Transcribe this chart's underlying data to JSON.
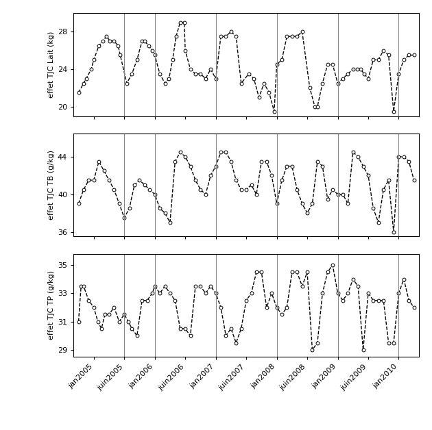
{
  "x_tick_labels": [
    "jan2005",
    "juin2005",
    "jan2006",
    "juin2006",
    "jan2007",
    "juin2007",
    "jan2008",
    "juin2008",
    "jan2009",
    "juin2009",
    "jan2010"
  ],
  "x_tick_positions": [
    0,
    6,
    12,
    18,
    24,
    30,
    36,
    42,
    48,
    54,
    60
  ],
  "vline_positions": [
    6,
    12,
    24,
    36,
    48,
    60
  ],
  "lait_x": [
    -3.0,
    -2.0,
    -1.5,
    -0.5,
    0.0,
    1.0,
    1.8,
    2.5,
    3.2,
    4.0,
    4.8,
    5.2,
    6.5,
    7.5,
    8.5,
    9.5,
    10.0,
    10.8,
    11.5,
    12.0,
    13.0,
    14.0,
    14.8,
    15.5,
    16.2,
    17.0,
    17.8,
    18.0,
    19.0,
    20.0,
    21.0,
    22.0,
    23.0,
    24.0,
    25.0,
    26.0,
    27.0,
    28.0,
    29.0,
    30.5,
    31.5,
    32.5,
    33.5,
    34.5,
    35.5,
    36.0,
    37.0,
    38.0,
    39.0,
    40.0,
    41.0,
    42.5,
    43.5,
    44.0,
    45.0,
    46.0,
    47.0,
    48.0,
    49.0,
    50.0,
    51.0,
    51.8,
    52.5,
    53.2,
    54.0,
    55.0,
    56.0,
    57.0,
    58.0,
    59.0,
    60.0,
    61.0,
    62.0,
    63.0
  ],
  "lait_values": [
    21.5,
    22.5,
    23.0,
    24.0,
    25.0,
    26.5,
    27.0,
    27.5,
    27.0,
    27.0,
    26.5,
    25.5,
    22.5,
    23.5,
    25.0,
    27.0,
    27.0,
    26.5,
    26.0,
    25.5,
    23.5,
    22.5,
    23.0,
    25.0,
    27.5,
    29.0,
    29.0,
    26.0,
    24.0,
    23.5,
    23.5,
    23.0,
    24.0,
    23.0,
    27.5,
    27.5,
    28.0,
    27.5,
    22.5,
    23.5,
    23.0,
    21.0,
    22.5,
    21.5,
    19.5,
    24.5,
    25.0,
    27.5,
    27.5,
    27.5,
    28.0,
    22.0,
    20.0,
    20.0,
    22.5,
    24.5,
    24.5,
    22.5,
    23.0,
    23.5,
    24.0,
    24.0,
    24.0,
    23.5,
    23.0,
    25.0,
    25.0,
    26.0,
    25.5,
    19.5,
    23.5,
    25.0,
    25.5,
    25.5
  ],
  "lait_ylim": [
    19.0,
    30.0
  ],
  "lait_yticks": [
    20,
    24,
    28
  ],
  "lait_ylabel": "effet TJC Lait (kg)",
  "tb_x": [
    -3.0,
    -2.0,
    -1.0,
    0.0,
    1.0,
    2.0,
    3.0,
    4.0,
    5.0,
    6.0,
    7.0,
    8.0,
    9.0,
    10.0,
    11.0,
    12.0,
    13.0,
    14.0,
    15.0,
    16.0,
    17.0,
    18.0,
    19.0,
    20.0,
    21.0,
    22.0,
    23.0,
    24.0,
    25.0,
    26.0,
    27.0,
    28.0,
    29.0,
    30.0,
    31.0,
    32.0,
    33.0,
    34.0,
    35.0,
    36.0,
    37.0,
    38.0,
    39.0,
    40.0,
    41.0,
    42.0,
    43.0,
    44.0,
    45.0,
    46.0,
    47.0,
    48.0,
    49.0,
    50.0,
    51.0,
    52.0,
    53.0,
    54.0,
    55.0,
    56.0,
    57.0,
    58.0,
    59.0,
    60.0,
    61.0,
    62.0,
    63.0
  ],
  "tb_values": [
    39.0,
    40.5,
    41.5,
    41.5,
    43.5,
    42.5,
    41.5,
    40.5,
    39.0,
    37.5,
    38.5,
    41.0,
    41.5,
    41.0,
    40.5,
    40.0,
    38.5,
    38.0,
    37.0,
    43.5,
    44.5,
    44.0,
    43.0,
    41.5,
    40.5,
    40.0,
    42.0,
    43.0,
    44.5,
    44.5,
    43.5,
    41.5,
    40.5,
    40.5,
    41.0,
    40.0,
    43.5,
    43.5,
    42.0,
    39.0,
    41.5,
    43.0,
    43.0,
    40.5,
    39.0,
    38.0,
    39.0,
    43.5,
    43.0,
    39.5,
    40.5,
    40.0,
    40.0,
    39.0,
    44.5,
    44.0,
    43.0,
    42.0,
    38.5,
    37.0,
    40.5,
    41.5,
    36.0,
    44.0,
    44.0,
    43.5,
    41.5
  ],
  "tb_ylim": [
    35.5,
    46.5
  ],
  "tb_yticks": [
    36,
    40,
    44
  ],
  "tb_ylabel": "effet TJC TB (g/kg)",
  "tp_x": [
    -3.0,
    -2.5,
    -2.0,
    -1.0,
    0.0,
    0.8,
    1.5,
    2.2,
    3.0,
    4.0,
    5.0,
    6.0,
    6.8,
    7.5,
    8.5,
    9.5,
    10.5,
    11.5,
    12.0,
    13.0,
    14.0,
    15.0,
    16.0,
    17.0,
    18.0,
    19.0,
    20.0,
    21.0,
    22.0,
    23.0,
    24.0,
    25.0,
    26.0,
    27.0,
    28.0,
    29.0,
    30.0,
    31.0,
    32.0,
    33.0,
    34.0,
    35.0,
    36.0,
    37.0,
    38.0,
    39.0,
    40.0,
    41.0,
    42.0,
    43.0,
    44.0,
    45.0,
    46.0,
    47.0,
    48.0,
    49.0,
    50.0,
    51.0,
    52.0,
    53.0,
    54.0,
    55.0,
    56.0,
    57.0,
    58.0,
    59.0,
    60.0,
    61.0,
    62.0,
    63.0
  ],
  "tp_values": [
    31.0,
    33.5,
    33.5,
    32.5,
    32.0,
    31.0,
    30.5,
    31.5,
    31.5,
    32.0,
    31.0,
    31.5,
    31.0,
    30.5,
    30.0,
    32.5,
    32.5,
    33.0,
    33.5,
    33.0,
    33.5,
    33.0,
    32.5,
    30.5,
    30.5,
    30.0,
    33.5,
    33.5,
    33.0,
    33.5,
    33.0,
    32.0,
    30.0,
    30.5,
    29.5,
    30.5,
    32.5,
    33.0,
    34.5,
    34.5,
    32.0,
    33.0,
    32.0,
    31.5,
    32.0,
    34.5,
    34.5,
    33.5,
    34.5,
    29.0,
    29.5,
    33.0,
    34.5,
    35.0,
    33.0,
    32.5,
    33.0,
    34.0,
    33.5,
    29.0,
    33.0,
    32.5,
    32.5,
    32.5,
    29.5,
    29.5,
    33.0,
    34.0,
    32.5,
    32.0
  ],
  "tp_ylim": [
    28.5,
    35.8
  ],
  "tp_yticks": [
    29,
    31,
    33,
    35
  ],
  "tp_ylabel": "effet TJC TP (g/kg)",
  "line_color": "black",
  "marker": "o",
  "markersize": 3.5,
  "linestyle": "--",
  "linewidth": 1.0,
  "markerfacecolor": "white",
  "markeredgecolor": "black",
  "markeredgewidth": 0.7,
  "vline_color": "#888888",
  "vline_lw": 0.8,
  "bg_color": "white"
}
